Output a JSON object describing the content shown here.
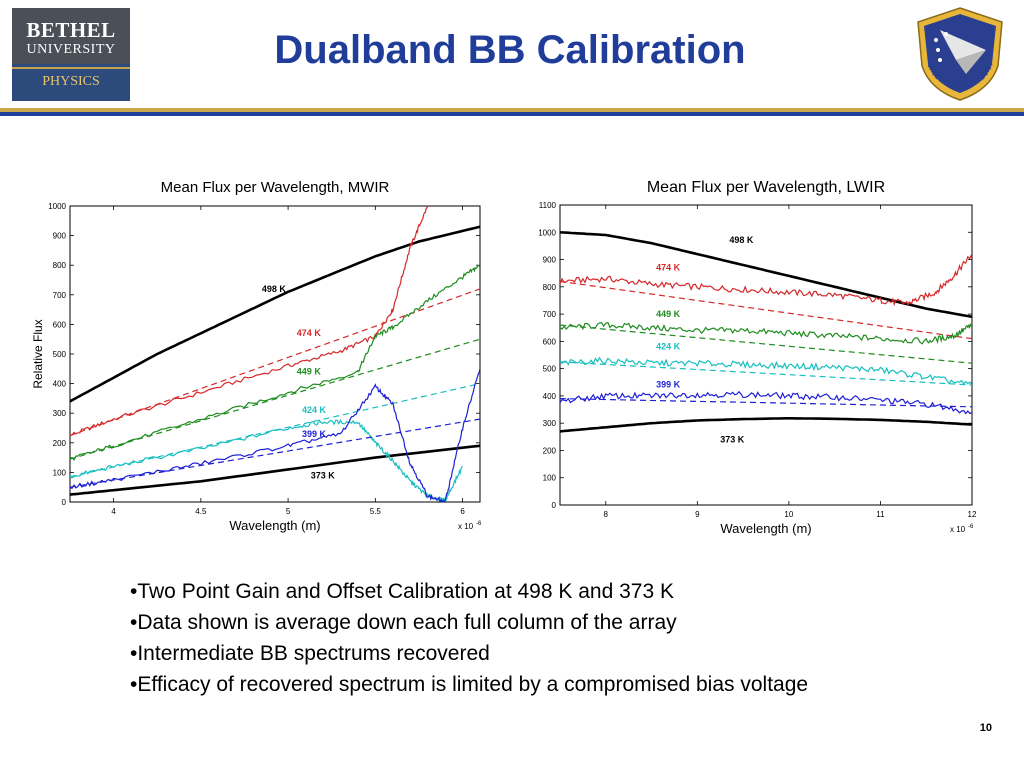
{
  "slide": {
    "title": "Dualband BB Calibration",
    "page_number": "10",
    "logo_left": {
      "line1": "BETHEL",
      "line2": "UNIVERSITY",
      "line3": "PHYSICS"
    },
    "logo_right": {
      "text": "AIR FORCE RESEARCH LABORATORY",
      "icon": "afrl-seal-icon"
    },
    "bullets": [
      "•Two Point Gain and Offset Calibration at 498 K and 373 K",
      "•Data shown is average down each full column of the array",
      "•Intermediate BB spectrums recovered",
      "•Efficacy of recovered spectrum is limited by a compromised bias voltage"
    ],
    "colors": {
      "title": "#1f3d99",
      "rule_gold": "#caa84a",
      "rule_blue": "#1f3d99"
    }
  },
  "chart_data": [
    {
      "type": "line",
      "title": "Mean Flux per Wavelength, MWIR",
      "xlabel": "Wavelength (m)",
      "ylabel": "Relative Flux",
      "x_exponent": "x 10",
      "x_exponent_power": "-6",
      "xlim": [
        3.75,
        6.1
      ],
      "ylim": [
        0,
        1000
      ],
      "xticks": [
        "4",
        "4.5",
        "5",
        "5.5",
        "6"
      ],
      "xtick_values": [
        4,
        4.5,
        5,
        5.5,
        6
      ],
      "yticks": [
        "0",
        "100",
        "200",
        "300",
        "400",
        "500",
        "600",
        "700",
        "800",
        "900",
        "1000"
      ],
      "ytick_values": [
        0,
        100,
        200,
        300,
        400,
        500,
        600,
        700,
        800,
        900,
        1000
      ],
      "grid": false,
      "series": [
        {
          "name": "498 K",
          "color": "#000000",
          "style": "solid",
          "x": [
            3.75,
            4.0,
            4.25,
            4.5,
            4.75,
            5.0,
            5.25,
            5.5,
            5.75,
            6.1
          ],
          "y": [
            340,
            420,
            500,
            570,
            640,
            710,
            770,
            830,
            880,
            930
          ]
        },
        {
          "name": "373 K",
          "color": "#000000",
          "style": "solid",
          "x": [
            3.75,
            4.0,
            4.5,
            5.0,
            5.5,
            6.1
          ],
          "y": [
            25,
            40,
            70,
            110,
            150,
            190
          ]
        },
        {
          "name": "474 K",
          "color": "#d62728",
          "style": "solid",
          "x": [
            3.75,
            4.0,
            4.5,
            5.0,
            5.3,
            5.5,
            5.6,
            5.7,
            5.8
          ],
          "y": [
            225,
            280,
            370,
            460,
            510,
            560,
            650,
            860,
            1000
          ]
        },
        {
          "name": "474 K",
          "color": "#d62728",
          "style": "dashed",
          "x": [
            3.75,
            6.1
          ],
          "y": [
            225,
            720
          ]
        },
        {
          "name": "449 K",
          "color": "#1e8c1e",
          "style": "solid",
          "x": [
            3.75,
            4.0,
            4.5,
            5.0,
            5.4,
            5.5,
            5.6,
            5.8,
            6.0,
            6.1
          ],
          "y": [
            145,
            190,
            280,
            370,
            440,
            560,
            590,
            680,
            760,
            800
          ]
        },
        {
          "name": "449 K",
          "color": "#1e8c1e",
          "style": "dashed",
          "x": [
            3.75,
            6.1
          ],
          "y": [
            145,
            550
          ]
        },
        {
          "name": "424 K",
          "color": "#17bfbf",
          "style": "solid",
          "x": [
            3.75,
            4.0,
            4.5,
            5.0,
            5.2,
            5.4,
            5.5,
            5.6,
            5.7,
            5.8,
            5.9,
            6.0
          ],
          "y": [
            85,
            120,
            180,
            250,
            270,
            270,
            200,
            140,
            70,
            20,
            5,
            120
          ]
        },
        {
          "name": "424 K",
          "color": "#17bfbf",
          "style": "dashed",
          "x": [
            3.75,
            6.1
          ],
          "y": [
            85,
            400
          ]
        },
        {
          "name": "399 K",
          "color": "#1f1fd6",
          "style": "solid",
          "x": [
            3.75,
            4.0,
            4.5,
            5.0,
            5.3,
            5.5,
            5.6,
            5.7,
            5.8,
            5.9,
            6.0,
            6.1
          ],
          "y": [
            50,
            75,
            130,
            190,
            230,
            390,
            330,
            130,
            20,
            0,
            250,
            450
          ]
        },
        {
          "name": "399 K",
          "color": "#1f1fd6",
          "style": "dashed",
          "x": [
            3.75,
            6.1
          ],
          "y": [
            50,
            280
          ]
        }
      ],
      "annotations": [
        {
          "text": "498 K",
          "x": 4.85,
          "y": 710,
          "color": "#000000"
        },
        {
          "text": "474 K",
          "x": 5.05,
          "y": 560,
          "color": "#d62728"
        },
        {
          "text": "449 K",
          "x": 5.05,
          "y": 430,
          "color": "#1e8c1e"
        },
        {
          "text": "424 K",
          "x": 5.08,
          "y": 300,
          "color": "#17bfbf"
        },
        {
          "text": "399 K",
          "x": 5.08,
          "y": 220,
          "color": "#1f1fd6"
        },
        {
          "text": "373 K",
          "x": 5.13,
          "y": 80,
          "color": "#000000"
        }
      ]
    },
    {
      "type": "line",
      "title": "Mean Flux per Wavelength, LWIR",
      "xlabel": "Wavelength (m)",
      "ylabel": "",
      "x_exponent": "x 10",
      "x_exponent_power": "-6",
      "xlim": [
        7.5,
        12
      ],
      "ylim": [
        0,
        1100
      ],
      "xticks": [
        "8",
        "9",
        "10",
        "11",
        "12"
      ],
      "xtick_values": [
        8,
        9,
        10,
        11,
        12
      ],
      "yticks": [
        "0",
        "100",
        "200",
        "300",
        "400",
        "500",
        "600",
        "700",
        "800",
        "900",
        "1000",
        "1100"
      ],
      "ytick_values": [
        0,
        100,
        200,
        300,
        400,
        500,
        600,
        700,
        800,
        900,
        1000,
        1100
      ],
      "grid": false,
      "series": [
        {
          "name": "498 K",
          "color": "#000000",
          "style": "solid",
          "x": [
            7.5,
            8.0,
            8.5,
            9.0,
            9.5,
            10.0,
            10.5,
            11.0,
            11.5,
            12.0
          ],
          "y": [
            1000,
            990,
            960,
            920,
            880,
            840,
            800,
            760,
            720,
            690
          ]
        },
        {
          "name": "373 K",
          "color": "#000000",
          "style": "solid",
          "x": [
            7.5,
            8.0,
            8.5,
            9.0,
            9.5,
            10.0,
            10.5,
            11.0,
            11.5,
            12.0
          ],
          "y": [
            270,
            285,
            300,
            310,
            315,
            318,
            316,
            312,
            305,
            295
          ]
        },
        {
          "name": "474 K",
          "color": "#d62728",
          "style": "solid",
          "x": [
            7.5,
            8.0,
            8.5,
            9.0,
            9.5,
            10.0,
            10.5,
            11.0,
            11.3,
            11.6,
            11.8,
            12.0
          ],
          "y": [
            820,
            830,
            810,
            800,
            790,
            780,
            770,
            750,
            740,
            780,
            840,
            920
          ]
        },
        {
          "name": "474 K",
          "color": "#d62728",
          "style": "dashed",
          "x": [
            7.5,
            12.0
          ],
          "y": [
            820,
            610
          ]
        },
        {
          "name": "449 K",
          "color": "#1e8c1e",
          "style": "solid",
          "x": [
            7.5,
            8.0,
            8.5,
            9.0,
            9.5,
            10.0,
            10.5,
            11.0,
            11.5,
            11.8,
            12.0
          ],
          "y": [
            650,
            660,
            650,
            640,
            640,
            630,
            620,
            610,
            600,
            620,
            660
          ]
        },
        {
          "name": "449 K",
          "color": "#1e8c1e",
          "style": "dashed",
          "x": [
            7.5,
            12.0
          ],
          "y": [
            660,
            520
          ]
        },
        {
          "name": "424 K",
          "color": "#17bfbf",
          "style": "solid",
          "x": [
            7.5,
            8.0,
            8.5,
            9.0,
            9.5,
            10.0,
            10.5,
            11.0,
            11.5,
            12.0
          ],
          "y": [
            520,
            530,
            520,
            520,
            515,
            510,
            505,
            495,
            470,
            440
          ]
        },
        {
          "name": "424 K",
          "color": "#17bfbf",
          "style": "dashed",
          "x": [
            7.5,
            12.0
          ],
          "y": [
            525,
            440
          ]
        },
        {
          "name": "399 K",
          "color": "#1f1fd6",
          "style": "solid",
          "x": [
            7.5,
            8.0,
            8.5,
            9.0,
            9.5,
            10.0,
            10.5,
            11.0,
            11.5,
            12.0
          ],
          "y": [
            380,
            400,
            400,
            405,
            405,
            400,
            395,
            385,
            370,
            340
          ]
        },
        {
          "name": "399 K",
          "color": "#1f1fd6",
          "style": "dashed",
          "x": [
            7.5,
            12.0
          ],
          "y": [
            390,
            360
          ]
        }
      ],
      "annotations": [
        {
          "text": "498 K",
          "x": 9.35,
          "y": 960,
          "color": "#000000"
        },
        {
          "text": "474 K",
          "x": 8.55,
          "y": 860,
          "color": "#d62728"
        },
        {
          "text": "449 K",
          "x": 8.55,
          "y": 690,
          "color": "#1e8c1e"
        },
        {
          "text": "424 K",
          "x": 8.55,
          "y": 570,
          "color": "#17bfbf"
        },
        {
          "text": "399 K",
          "x": 8.55,
          "y": 430,
          "color": "#1f1fd6"
        },
        {
          "text": "373 K",
          "x": 9.25,
          "y": 230,
          "color": "#000000"
        }
      ]
    }
  ]
}
